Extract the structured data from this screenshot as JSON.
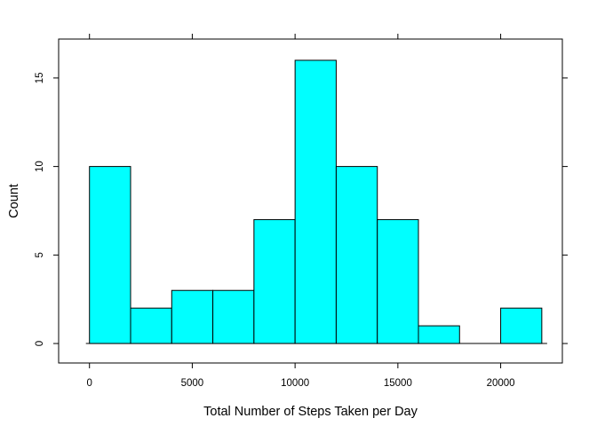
{
  "chart_data": {
    "type": "bar",
    "subtype": "histogram",
    "xlabel": "Total Number of Steps Taken per Day",
    "ylabel": "Count",
    "bin_edges": [
      0,
      2000,
      4000,
      6000,
      8000,
      10000,
      12000,
      14000,
      16000,
      18000,
      20000,
      22000
    ],
    "counts": [
      10,
      2,
      3,
      3,
      7,
      16,
      10,
      7,
      1,
      0,
      2
    ],
    "xlim": [
      -1500,
      23000
    ],
    "ylim": [
      -1.1,
      17.2
    ],
    "x_ticks": [
      0,
      5000,
      10000,
      15000,
      20000
    ],
    "x_tick_labels": [
      "0",
      "5000",
      "10000",
      "15000",
      "20000"
    ],
    "y_ticks": [
      0,
      5,
      10,
      15
    ],
    "y_tick_labels": [
      "0",
      "5",
      "10",
      "15"
    ],
    "fill_color": "#00ffff",
    "stroke_color": "#000000",
    "grid": false,
    "legend": "none"
  }
}
